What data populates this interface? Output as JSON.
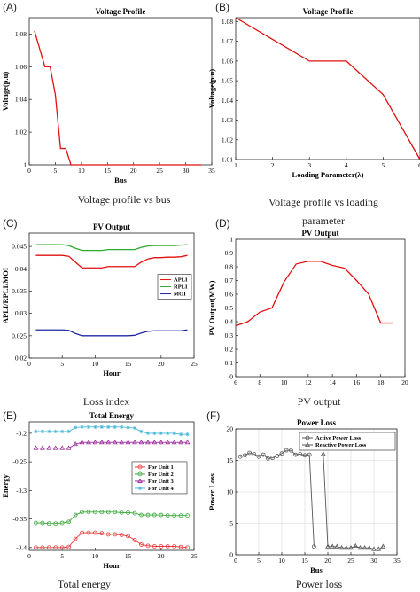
{
  "panels": [
    {
      "label": "(A)",
      "caption": "Voltage profile vs bus",
      "chart": {
        "type": "line",
        "title": "Voltage Profile",
        "xlabel": "Bus",
        "ylabel": "Voltage(p.u)",
        "xlim": [
          0,
          35
        ],
        "ylim": [
          1,
          1.09
        ],
        "xticks": [
          0,
          5,
          10,
          15,
          20,
          25,
          30,
          35
        ],
        "yticks": [
          1,
          1.02,
          1.04,
          1.06,
          1.08
        ],
        "grid": false,
        "series": [
          {
            "color": "#e01010",
            "x": [
              1,
              2,
              3,
              4,
              5,
              6,
              7,
              8,
              9,
              10,
              15,
              20,
              25,
              30,
              33
            ],
            "y": [
              1.082,
              1.071,
              1.06,
              1.06,
              1.043,
              1.01,
              1.01,
              1.0,
              1.0,
              1.0,
              1.0,
              1.0,
              1.0,
              1.0,
              1.0
            ]
          }
        ]
      }
    },
    {
      "label": "(B)",
      "caption": "Voltage profile vs loading parameter",
      "chart": {
        "type": "line",
        "title": "Voltage Profile",
        "xlabel": "Loading Parameter(λ)",
        "ylabel": "Voltage(p.u)",
        "xlim": [
          1,
          6
        ],
        "ylim": [
          1.01,
          1.082
        ],
        "xticks": [
          1,
          2,
          3,
          4,
          5,
          6
        ],
        "yticks": [
          1.01,
          1.02,
          1.03,
          1.04,
          1.05,
          1.06,
          1.07,
          1.08
        ],
        "grid": false,
        "series": [
          {
            "color": "#e01010",
            "x": [
              1,
              2,
              3,
              4,
              5,
              6
            ],
            "y": [
              1.082,
              1.071,
              1.06,
              1.06,
              1.043,
              1.01
            ]
          }
        ]
      }
    },
    {
      "label": "(C)",
      "caption": "Loss index",
      "chart": {
        "type": "line",
        "title": "PV Output",
        "xlabel": "Hour",
        "ylabel": "APLI/RPLI/MOI",
        "xlim": [
          0,
          25
        ],
        "ylim": [
          0.02,
          0.048
        ],
        "xticks": [
          0,
          5,
          10,
          15,
          20,
          25
        ],
        "yticks": [
          0.02,
          0.025,
          0.03,
          0.035,
          0.04,
          0.045
        ],
        "grid": false,
        "legend": "right",
        "series": [
          {
            "name": "APLI",
            "color": "#e01010",
            "x": [
              1,
              2,
              3,
              4,
              5,
              6,
              7,
              8,
              9,
              10,
              11,
              12,
              13,
              14,
              15,
              16,
              17,
              18,
              19,
              20,
              21,
              22,
              23,
              24
            ],
            "y": [
              0.043,
              0.043,
              0.043,
              0.043,
              0.043,
              0.0428,
              0.0415,
              0.0402,
              0.0402,
              0.0402,
              0.0402,
              0.0405,
              0.0405,
              0.0405,
              0.0405,
              0.0405,
              0.0415,
              0.0422,
              0.0425,
              0.0425,
              0.0426,
              0.0426,
              0.0427,
              0.043
            ]
          },
          {
            "name": "RPLI",
            "color": "#2eaa2e",
            "x": [
              1,
              2,
              3,
              4,
              5,
              6,
              7,
              8,
              9,
              10,
              11,
              12,
              13,
              14,
              15,
              16,
              17,
              18,
              19,
              20,
              21,
              22,
              23,
              24
            ],
            "y": [
              0.0454,
              0.0454,
              0.0454,
              0.0454,
              0.0454,
              0.0452,
              0.0446,
              0.0441,
              0.0441,
              0.0441,
              0.0441,
              0.0443,
              0.0443,
              0.0443,
              0.0443,
              0.0443,
              0.0448,
              0.0451,
              0.0452,
              0.0452,
              0.0452,
              0.0452,
              0.0453,
              0.0454
            ]
          },
          {
            "name": "MOI",
            "color": "#1f2aa0",
            "x": [
              1,
              2,
              3,
              4,
              5,
              6,
              7,
              8,
              9,
              10,
              11,
              12,
              13,
              14,
              15,
              16,
              17,
              18,
              19,
              20,
              21,
              22,
              23,
              24
            ],
            "y": [
              0.0263,
              0.0263,
              0.0263,
              0.0263,
              0.0263,
              0.0262,
              0.0255,
              0.025,
              0.025,
              0.025,
              0.025,
              0.025,
              0.025,
              0.025,
              0.025,
              0.0251,
              0.0256,
              0.026,
              0.0261,
              0.0261,
              0.0261,
              0.0261,
              0.0261,
              0.0263
            ]
          }
        ]
      }
    },
    {
      "label": "(D)",
      "caption": "PV output",
      "chart": {
        "type": "line",
        "title": "PV Output",
        "xlabel": "",
        "ylabel": "PV Output(MW)",
        "xlim": [
          6,
          20
        ],
        "ylim": [
          0,
          1
        ],
        "xticks": [
          6,
          8,
          10,
          12,
          14,
          16,
          18,
          20
        ],
        "yticks": [
          0,
          0.1,
          0.2,
          0.3,
          0.4,
          0.5,
          0.6,
          0.7,
          0.8,
          0.9,
          1
        ],
        "grid": false,
        "series": [
          {
            "color": "#e01010",
            "x": [
              6,
              7,
              8,
              9,
              10,
              11,
              12,
              13,
              14,
              15,
              16,
              17,
              18,
              19
            ],
            "y": [
              0.37,
              0.4,
              0.47,
              0.5,
              0.69,
              0.82,
              0.84,
              0.84,
              0.81,
              0.79,
              0.7,
              0.6,
              0.39,
              0.39
            ]
          }
        ]
      }
    },
    {
      "label": "(E)",
      "caption": "Total energy",
      "chart": {
        "type": "line",
        "title": "Total Energy",
        "xlabel": "Hour",
        "ylabel": "Energy",
        "xlim": [
          0,
          25
        ],
        "ylim": [
          -0.405,
          -0.18
        ],
        "xticks": [
          0,
          5,
          10,
          15,
          20,
          25
        ],
        "yticks": [
          -0.4,
          -0.35,
          -0.3,
          -0.25,
          -0.2
        ],
        "grid": false,
        "legend": "right",
        "series": [
          {
            "name": "For Unit 1",
            "color": "#e83a3a",
            "marker": "circle",
            "x": [
              1,
              2,
              3,
              4,
              5,
              6,
              7,
              8,
              9,
              10,
              11,
              12,
              13,
              14,
              15,
              16,
              17,
              18,
              19,
              20,
              21,
              22,
              23,
              24
            ],
            "y": [
              -0.4,
              -0.4,
              -0.4,
              -0.4,
              -0.4,
              -0.399,
              -0.385,
              -0.374,
              -0.374,
              -0.374,
              -0.375,
              -0.377,
              -0.377,
              -0.378,
              -0.38,
              -0.387,
              -0.395,
              -0.397,
              -0.398,
              -0.398,
              -0.398,
              -0.398,
              -0.399,
              -0.4
            ]
          },
          {
            "name": "For Unit 2",
            "color": "#3aa83a",
            "marker": "circle",
            "x": [
              1,
              2,
              3,
              4,
              5,
              6,
              7,
              8,
              9,
              10,
              11,
              12,
              13,
              14,
              15,
              16,
              17,
              18,
              19,
              20,
              21,
              22,
              23,
              24
            ],
            "y": [
              -0.357,
              -0.357,
              -0.358,
              -0.358,
              -0.357,
              -0.355,
              -0.343,
              -0.338,
              -0.338,
              -0.338,
              -0.338,
              -0.338,
              -0.338,
              -0.339,
              -0.339,
              -0.34,
              -0.343,
              -0.343,
              -0.343,
              -0.343,
              -0.344,
              -0.344,
              -0.344,
              -0.344
            ]
          },
          {
            "name": "For Unit 3",
            "color": "#9a2a9a",
            "marker": "triangle",
            "x": [
              1,
              2,
              3,
              4,
              5,
              6,
              7,
              8,
              9,
              10,
              11,
              12,
              13,
              14,
              15,
              16,
              17,
              18,
              19,
              20,
              21,
              22,
              23,
              24
            ],
            "y": [
              -0.226,
              -0.226,
              -0.226,
              -0.226,
              -0.226,
              -0.226,
              -0.219,
              -0.216,
              -0.216,
              -0.216,
              -0.216,
              -0.216,
              -0.216,
              -0.216,
              -0.216,
              -0.216,
              -0.216,
              -0.216,
              -0.216,
              -0.216,
              -0.216,
              -0.216,
              -0.216,
              -0.216
            ]
          },
          {
            "name": "For Unit 4",
            "color": "#4ab8d8",
            "marker": "star",
            "x": [
              1,
              2,
              3,
              4,
              5,
              6,
              7,
              8,
              9,
              10,
              11,
              12,
              13,
              14,
              15,
              16,
              17,
              18,
              19,
              20,
              21,
              22,
              23,
              24
            ],
            "y": [
              -0.197,
              -0.197,
              -0.197,
              -0.197,
              -0.197,
              -0.197,
              -0.19,
              -0.189,
              -0.189,
              -0.189,
              -0.189,
              -0.189,
              -0.189,
              -0.189,
              -0.19,
              -0.191,
              -0.197,
              -0.2,
              -0.2,
              -0.2,
              -0.2,
              -0.2,
              -0.202,
              -0.202
            ]
          }
        ]
      }
    },
    {
      "label": "(F)",
      "caption": "Power loss",
      "chart": {
        "type": "line",
        "title": "Power Loss",
        "xlabel": "Bus",
        "ylabel": "Power Loss",
        "xlim": [
          0,
          35
        ],
        "ylim": [
          0,
          20
        ],
        "xticks": [
          0,
          5,
          10,
          15,
          20,
          25,
          30,
          35
        ],
        "yticks": [
          0,
          5,
          10,
          15,
          20
        ],
        "grid": true,
        "legend": "top-right",
        "series": [
          {
            "name": "Active Power Loss",
            "color": "#555555",
            "marker": "circle",
            "x": [
              1,
              2,
              3,
              4,
              5,
              6,
              7,
              8,
              9,
              10,
              11,
              12,
              13,
              14,
              15,
              16,
              17
            ],
            "y": [
              15.6,
              15.8,
              16.2,
              16.0,
              15.6,
              15.9,
              15.3,
              15.4,
              15.7,
              16.1,
              16.6,
              16.6,
              15.9,
              16.0,
              15.8,
              15.9,
              1.3
            ]
          },
          {
            "name": "Reactive Power Loss",
            "color": "#555555",
            "marker": "triangle",
            "x": [
              19,
              20,
              21,
              22,
              23,
              24,
              25,
              26,
              27,
              28,
              29,
              30,
              31,
              32
            ],
            "y": [
              16.0,
              1.3,
              1.3,
              1.3,
              1.1,
              1.1,
              1.1,
              1.4,
              1.1,
              1.1,
              1.1,
              0.9,
              0.9,
              1.3
            ]
          }
        ]
      }
    }
  ]
}
